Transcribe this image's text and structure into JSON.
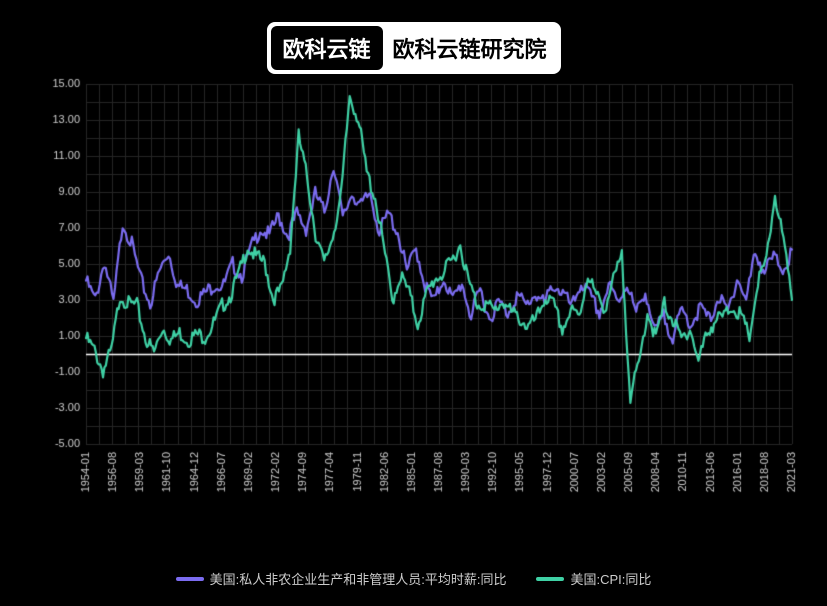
{
  "header": {
    "badge_dark": "欧科云链",
    "badge_light": "欧科云链研究院"
  },
  "chart": {
    "type": "line",
    "background_color": "#000000",
    "grid_color": "#262626",
    "axis_color": "#ffffff",
    "tick_label_color": "#cccccc",
    "tick_fontsize": 11,
    "y": {
      "min": -5,
      "max": 15,
      "ticks": [
        -5.0,
        -3.0,
        -1.0,
        1.0,
        3.0,
        5.0,
        7.0,
        9.0,
        11.0,
        13.0,
        15.0
      ],
      "grid_step": 1
    },
    "x": {
      "labels": [
        "1954-01",
        "1956-08",
        "1959-03",
        "1961-10",
        "1964-12",
        "1966-07",
        "1969-02",
        "1972-02",
        "1974-09",
        "1977-04",
        "1979-11",
        "1982-06",
        "1985-01",
        "1987-08",
        "1990-03",
        "1992-10",
        "1995-05",
        "1997-12",
        "2000-07",
        "2003-02",
        "2005-09",
        "2008-04",
        "2010-11",
        "2013-06",
        "2016-01",
        "2018-08",
        "2021-03"
      ],
      "grid_step": 1
    },
    "series": [
      {
        "name": "wages",
        "label": "美国:私人非农企业生产和非管理人员:平均时薪:同比",
        "color": "#7b6cf0",
        "line_width": 2.2,
        "data": [
          4.3,
          3.2,
          5.4,
          3.0,
          7.6,
          6.3,
          4.3,
          3.0,
          4.8,
          5.9,
          4.0,
          3.8,
          3.2,
          3.6,
          4.1,
          4.0,
          5.2,
          4.6,
          6.1,
          7.2,
          6.8,
          7.9,
          6.8,
          8.0,
          7.2,
          9.1,
          8.1,
          10.8,
          7.7,
          9.2,
          8.4,
          9.2,
          7.0,
          8.0,
          7.0,
          4.8,
          6.1,
          4.0,
          3.1,
          4.5,
          3.2,
          4.2,
          2.3,
          3.8,
          2.2,
          3.1,
          2.5,
          3.5,
          2.9,
          3.6,
          3.0,
          4.1,
          3.6,
          2.8,
          4.2,
          3.4,
          2.5,
          4.0,
          3.1,
          4.2,
          2.4,
          3.8,
          1.4,
          2.3,
          1.2,
          2.6,
          1.9,
          2.8,
          2.1,
          3.4,
          2.5,
          4.5,
          3.2,
          5.9,
          4.8,
          5.6,
          5.0,
          5.8
        ]
      },
      {
        "name": "cpi",
        "label": "美国:CPI:同比",
        "color": "#3fd1a5",
        "line_width": 2.2,
        "data": [
          1.1,
          0.4,
          -0.7,
          0.4,
          3.5,
          3.0,
          2.9,
          1.1,
          0.3,
          1.7,
          1.0,
          1.4,
          1.0,
          1.3,
          1.2,
          1.9,
          2.9,
          3.5,
          4.7,
          6.2,
          5.6,
          5.3,
          3.3,
          3.8,
          6.2,
          12.3,
          10.0,
          6.9,
          5.2,
          6.8,
          9.0,
          14.6,
          13.3,
          10.3,
          8.9,
          6.2,
          3.2,
          4.6,
          3.6,
          1.9,
          3.5,
          4.4,
          4.7,
          5.4,
          6.3,
          4.2,
          3.0,
          3.0,
          2.6,
          3.2,
          2.5,
          2.2,
          1.7,
          2.2,
          3.4,
          2.9,
          1.6,
          2.6,
          2.3,
          4.7,
          3.4,
          2.8,
          4.3,
          5.6,
          -2.1,
          -0.4,
          2.6,
          1.1,
          3.0,
          2.1,
          1.0,
          1.7,
          -0.2,
          1.4,
          2.1,
          2.3,
          2.9,
          2.3,
          1.2,
          4.2,
          5.4,
          9.1,
          6.5,
          3.0
        ]
      }
    ]
  },
  "legend": {
    "items": [
      {
        "color": "#7b6cf0",
        "label": "美国:私人非农企业生产和非管理人员:平均时薪:同比"
      },
      {
        "color": "#3fd1a5",
        "label": "美国:CPI:同比"
      }
    ]
  }
}
